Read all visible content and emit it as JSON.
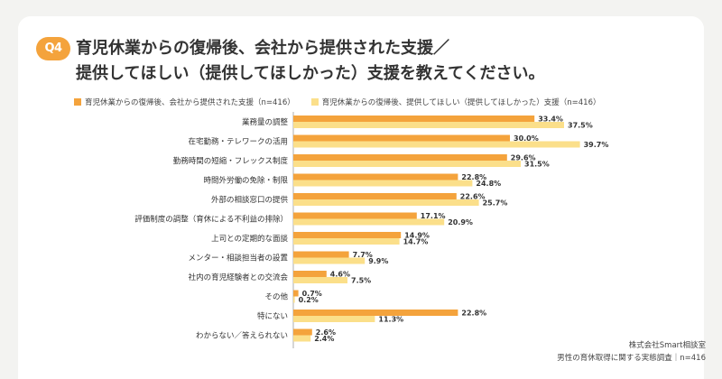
{
  "header": {
    "badge": "Q4",
    "title_line1": "育児休業からの復帰後、会社から提供された支援／",
    "title_line2": "提供してほしい（提供してほしかった）支援を教えてください。"
  },
  "footer": {
    "line1": "株式会社Smart相談室",
    "line2": "男性の育休取得に関する実態調査｜n=416"
  },
  "colors": {
    "provided": "#f4a33c",
    "wanted": "#fbdf8a"
  },
  "chart_data": {
    "type": "bar",
    "orientation": "horizontal",
    "categories": [
      "業務量の調整",
      "在宅勤務・テレワークの活用",
      "勤務時間の短縮・フレックス制度",
      "時間外労働の免除・制限",
      "外部の相談窓口の提供",
      "評価制度の調整（育休による不利益の排除）",
      "上司との定期的な面談",
      "メンター・相談担当者の設置",
      "社内の育児経験者との交流会",
      "その他",
      "特にない",
      "わからない／答えられない"
    ],
    "series": [
      {
        "name": "育児休業からの復帰後、会社から提供された支援（n=416）",
        "values": [
          33.4,
          30.0,
          29.6,
          22.8,
          22.6,
          17.1,
          14.9,
          7.7,
          4.6,
          0.7,
          22.8,
          2.6
        ],
        "labels": [
          "33.4%",
          "30.0%",
          "29.6%",
          "22.8%",
          "22.6%",
          "17.1%",
          "14.9%",
          "7.7%",
          "4.6%",
          "0.7%",
          "22.8%",
          "2.6%"
        ]
      },
      {
        "name": "育児休業からの復帰後、提供してほしい（提供してほしかった）支援（n=416）",
        "values": [
          37.5,
          39.7,
          31.5,
          24.8,
          25.7,
          20.9,
          14.7,
          9.9,
          7.5,
          0.2,
          11.3,
          2.4
        ],
        "labels": [
          "37.5%",
          "39.7%",
          "31.5%",
          "24.8%",
          "25.7%",
          "20.9%",
          "14.7%",
          "9.9%",
          "7.5%",
          "0.2%",
          "11.3%",
          "2.4%"
        ]
      }
    ],
    "xlim": [
      0,
      40
    ],
    "legend_position": "top-left",
    "grid": false
  }
}
